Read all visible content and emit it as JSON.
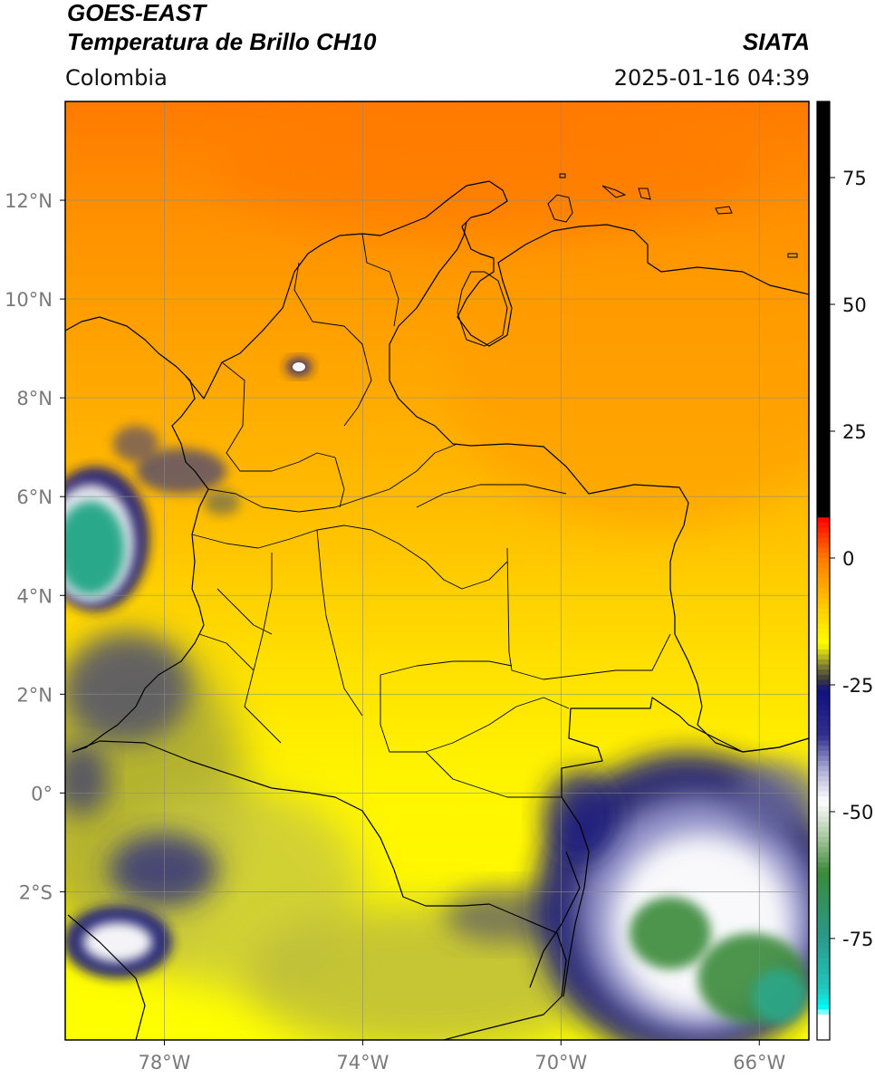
{
  "header": {
    "satellite": "GOES-EAST",
    "product": "Temperatura de Brillo CH10",
    "organization": "SIATA",
    "region": "Colombia",
    "datetime": "2025-01-16 04:39"
  },
  "map": {
    "lon_range": [
      -80,
      -65
    ],
    "lat_range": [
      -5,
      14
    ],
    "lon_ticks": [
      {
        "value": -78,
        "label": "78°W"
      },
      {
        "value": -74,
        "label": "74°W"
      },
      {
        "value": -70,
        "label": "70°W"
      },
      {
        "value": -66,
        "label": "66°W"
      }
    ],
    "lat_ticks": [
      {
        "value": 12,
        "label": "12°N"
      },
      {
        "value": 10,
        "label": "10°N"
      },
      {
        "value": 8,
        "label": "8°N"
      },
      {
        "value": 6,
        "label": "6°N"
      },
      {
        "value": 4,
        "label": "4°N"
      },
      {
        "value": 2,
        "label": "2°N"
      },
      {
        "value": 0,
        "label": "0°"
      },
      {
        "value": -2,
        "label": "2°S"
      }
    ],
    "grid": true,
    "colors": {
      "warm_top": "#ff7a00",
      "warm_mid": "#ffae00",
      "mid": "#ffd800",
      "cold": "#ffff00",
      "cloud_olive": "#9a9a3a",
      "cloud_navy": "#1a1a80",
      "cloud_white": "#ffffff",
      "cloud_green": "#2d8a3a",
      "cloud_teal": "#2aa88a"
    }
  },
  "colorbar": {
    "range": [
      -95,
      90
    ],
    "ticks": [
      {
        "value": 75,
        "label": "75"
      },
      {
        "value": 50,
        "label": "50"
      },
      {
        "value": 25,
        "label": "25"
      },
      {
        "value": 0,
        "label": "0"
      },
      {
        "value": -25,
        "label": "-25"
      },
      {
        "value": -50,
        "label": "-50"
      },
      {
        "value": -75,
        "label": "-75"
      }
    ],
    "stops": [
      {
        "value": 90,
        "color": "#000000"
      },
      {
        "value": 8,
        "color": "#000000"
      },
      {
        "value": 7.9,
        "color": "#ff0000"
      },
      {
        "value": 0,
        "color": "#ff7a00"
      },
      {
        "value": -10,
        "color": "#ffcc00"
      },
      {
        "value": -17,
        "color": "#ffff00"
      },
      {
        "value": -22,
        "color": "#6a6a3a"
      },
      {
        "value": -24,
        "color": "#3a3a3a"
      },
      {
        "value": -26,
        "color": "#101080"
      },
      {
        "value": -35,
        "color": "#303090"
      },
      {
        "value": -42,
        "color": "#b0b0d8"
      },
      {
        "value": -48,
        "color": "#ffffff"
      },
      {
        "value": -55,
        "color": "#a8c8a0"
      },
      {
        "value": -62,
        "color": "#3a8a3a"
      },
      {
        "value": -75,
        "color": "#2a9a8a"
      },
      {
        "value": -85,
        "color": "#20c8c0"
      },
      {
        "value": -89,
        "color": "#00ffff"
      },
      {
        "value": -90,
        "color": "#ffffff"
      },
      {
        "value": -95,
        "color": "#ffffff"
      }
    ]
  }
}
